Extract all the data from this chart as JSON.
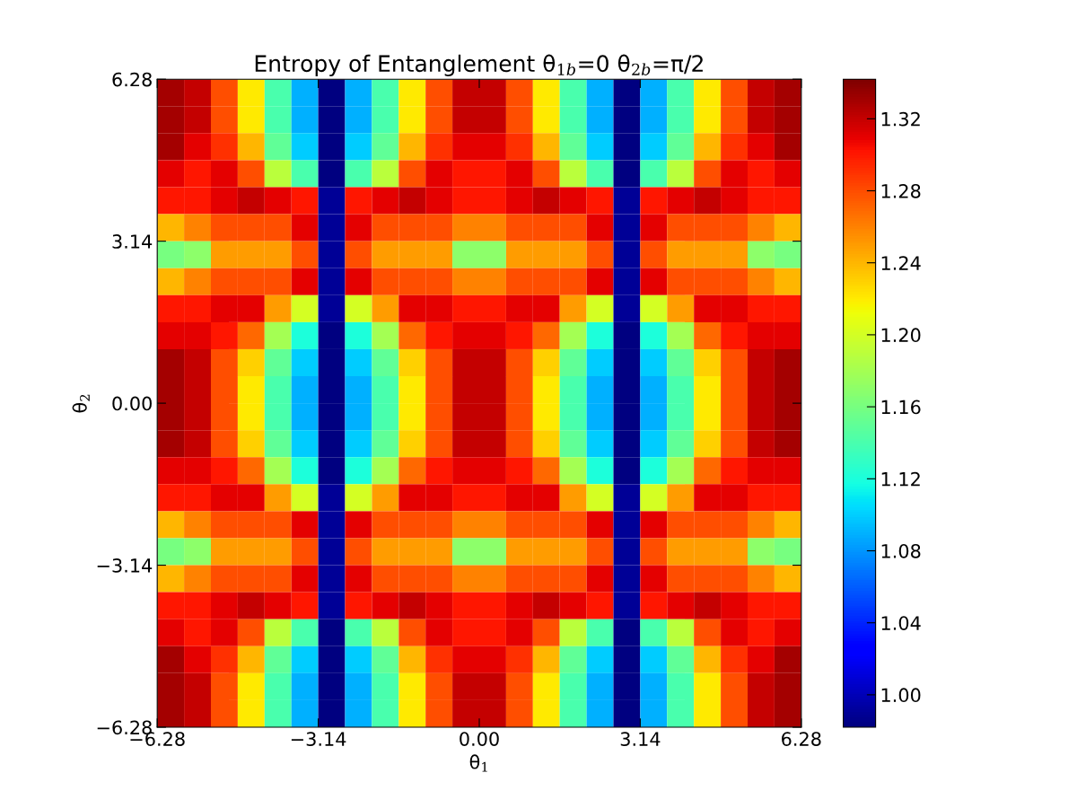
{
  "chart_data": {
    "type": "heatmap",
    "title": "Entropy of Entanglement θ$_{1b}$=0 θ$_{2b}$=π/2",
    "xlabel": "θ$_{1}$",
    "ylabel": "θ$_{2}$",
    "xlim": [
      -6.28,
      6.28
    ],
    "ylim": [
      -6.28,
      6.28
    ],
    "xticks": [
      {
        "value": -6.28,
        "label": "−6.28"
      },
      {
        "value": -3.14,
        "label": "−3.14"
      },
      {
        "value": 0,
        "label": "0.00"
      },
      {
        "value": 3.14,
        "label": "3.14"
      },
      {
        "value": 6.28,
        "label": "6.28"
      }
    ],
    "yticks": [
      {
        "value": -6.28,
        "label": "−6.28"
      },
      {
        "value": -3.14,
        "label": "−3.14"
      },
      {
        "value": 0,
        "label": "0.00"
      },
      {
        "value": 3.14,
        "label": "3.14"
      },
      {
        "value": 6.28,
        "label": "6.28"
      }
    ],
    "clim": [
      0.982,
      1.342
    ],
    "cticks": [
      {
        "value": 1.0,
        "label": "1.00"
      },
      {
        "value": 1.04,
        "label": "1.04"
      },
      {
        "value": 1.08,
        "label": "1.08"
      },
      {
        "value": 1.12,
        "label": "1.12"
      },
      {
        "value": 1.16,
        "label": "1.16"
      },
      {
        "value": 1.2,
        "label": "1.20"
      },
      {
        "value": 1.24,
        "label": "1.24"
      },
      {
        "value": 1.28,
        "label": "1.28"
      },
      {
        "value": 1.32,
        "label": "1.32"
      }
    ],
    "cells": [
      [
        1.33,
        1.32,
        1.28,
        1.22,
        1.14,
        1.09,
        0.98,
        1.09,
        1.14,
        1.22,
        1.28,
        1.32,
        1.32,
        1.28,
        1.22,
        1.14,
        1.09,
        0.98,
        1.09,
        1.14,
        1.22,
        1.28,
        1.32,
        1.33
      ],
      [
        1.33,
        1.32,
        1.28,
        1.22,
        1.14,
        1.09,
        0.98,
        1.09,
        1.14,
        1.22,
        1.28,
        1.32,
        1.32,
        1.28,
        1.22,
        1.14,
        1.09,
        0.98,
        1.09,
        1.14,
        1.22,
        1.28,
        1.32,
        1.33
      ],
      [
        1.33,
        1.31,
        1.29,
        1.24,
        1.15,
        1.1,
        0.98,
        1.1,
        1.15,
        1.24,
        1.29,
        1.31,
        1.31,
        1.29,
        1.24,
        1.15,
        1.1,
        0.98,
        1.1,
        1.15,
        1.24,
        1.29,
        1.31,
        1.33
      ],
      [
        1.31,
        1.3,
        1.31,
        1.28,
        1.19,
        1.14,
        0.98,
        1.14,
        1.19,
        1.28,
        1.31,
        1.3,
        1.3,
        1.31,
        1.28,
        1.19,
        1.14,
        0.98,
        1.14,
        1.19,
        1.28,
        1.31,
        1.3,
        1.31
      ],
      [
        1.3,
        1.3,
        1.31,
        1.32,
        1.31,
        1.3,
        0.99,
        1.3,
        1.31,
        1.32,
        1.31,
        1.3,
        1.3,
        1.31,
        1.32,
        1.31,
        1.3,
        0.99,
        1.3,
        1.31,
        1.32,
        1.31,
        1.3,
        1.3
      ],
      [
        1.24,
        1.26,
        1.28,
        1.28,
        1.28,
        1.31,
        0.99,
        1.31,
        1.28,
        1.28,
        1.28,
        1.26,
        1.26,
        1.28,
        1.28,
        1.28,
        1.31,
        0.99,
        1.31,
        1.28,
        1.28,
        1.28,
        1.26,
        1.24
      ],
      [
        1.16,
        1.17,
        1.25,
        1.25,
        1.25,
        1.28,
        0.99,
        1.28,
        1.25,
        1.25,
        1.25,
        1.17,
        1.17,
        1.25,
        1.25,
        1.25,
        1.28,
        0.99,
        1.28,
        1.25,
        1.25,
        1.25,
        1.17,
        1.16
      ],
      [
        1.24,
        1.26,
        1.28,
        1.28,
        1.28,
        1.31,
        0.99,
        1.31,
        1.28,
        1.28,
        1.28,
        1.26,
        1.26,
        1.28,
        1.28,
        1.28,
        1.31,
        0.99,
        1.31,
        1.28,
        1.28,
        1.28,
        1.26,
        1.24
      ],
      [
        1.3,
        1.3,
        1.31,
        1.31,
        1.25,
        1.2,
        0.99,
        1.2,
        1.25,
        1.31,
        1.31,
        1.3,
        1.3,
        1.31,
        1.31,
        1.25,
        1.2,
        0.99,
        1.2,
        1.25,
        1.31,
        1.31,
        1.3,
        1.3
      ],
      [
        1.31,
        1.31,
        1.3,
        1.27,
        1.18,
        1.12,
        0.98,
        1.12,
        1.18,
        1.27,
        1.3,
        1.31,
        1.31,
        1.3,
        1.27,
        1.18,
        1.12,
        0.98,
        1.12,
        1.18,
        1.27,
        1.3,
        1.31,
        1.31
      ],
      [
        1.33,
        1.32,
        1.28,
        1.23,
        1.15,
        1.1,
        0.98,
        1.1,
        1.15,
        1.23,
        1.28,
        1.32,
        1.32,
        1.28,
        1.23,
        1.15,
        1.1,
        0.98,
        1.1,
        1.15,
        1.23,
        1.28,
        1.32,
        1.33
      ],
      [
        1.33,
        1.32,
        1.28,
        1.22,
        1.14,
        1.09,
        0.98,
        1.09,
        1.14,
        1.22,
        1.28,
        1.32,
        1.32,
        1.28,
        1.22,
        1.14,
        1.09,
        0.98,
        1.09,
        1.14,
        1.22,
        1.28,
        1.32,
        1.33
      ],
      [
        1.33,
        1.32,
        1.28,
        1.22,
        1.14,
        1.09,
        0.98,
        1.09,
        1.14,
        1.22,
        1.28,
        1.32,
        1.32,
        1.28,
        1.22,
        1.14,
        1.09,
        0.98,
        1.09,
        1.14,
        1.22,
        1.28,
        1.32,
        1.33
      ],
      [
        1.33,
        1.32,
        1.28,
        1.23,
        1.15,
        1.1,
        0.98,
        1.1,
        1.15,
        1.23,
        1.28,
        1.32,
        1.32,
        1.28,
        1.23,
        1.15,
        1.1,
        0.98,
        1.1,
        1.15,
        1.23,
        1.28,
        1.32,
        1.33
      ],
      [
        1.31,
        1.31,
        1.3,
        1.27,
        1.18,
        1.12,
        0.98,
        1.12,
        1.18,
        1.27,
        1.3,
        1.31,
        1.31,
        1.3,
        1.27,
        1.18,
        1.12,
        0.98,
        1.12,
        1.18,
        1.27,
        1.3,
        1.31,
        1.31
      ],
      [
        1.3,
        1.3,
        1.31,
        1.31,
        1.25,
        1.2,
        0.99,
        1.2,
        1.25,
        1.31,
        1.31,
        1.3,
        1.3,
        1.31,
        1.31,
        1.25,
        1.2,
        0.99,
        1.2,
        1.25,
        1.31,
        1.31,
        1.3,
        1.3
      ],
      [
        1.24,
        1.26,
        1.28,
        1.28,
        1.28,
        1.31,
        0.99,
        1.31,
        1.28,
        1.28,
        1.28,
        1.26,
        1.26,
        1.28,
        1.28,
        1.28,
        1.31,
        0.99,
        1.31,
        1.28,
        1.28,
        1.28,
        1.26,
        1.24
      ],
      [
        1.16,
        1.17,
        1.25,
        1.25,
        1.25,
        1.28,
        0.99,
        1.28,
        1.25,
        1.25,
        1.25,
        1.17,
        1.17,
        1.25,
        1.25,
        1.25,
        1.28,
        0.99,
        1.28,
        1.25,
        1.25,
        1.25,
        1.17,
        1.16
      ],
      [
        1.24,
        1.26,
        1.28,
        1.28,
        1.28,
        1.31,
        0.99,
        1.31,
        1.28,
        1.28,
        1.28,
        1.26,
        1.26,
        1.28,
        1.28,
        1.28,
        1.31,
        0.99,
        1.31,
        1.28,
        1.28,
        1.28,
        1.26,
        1.24
      ],
      [
        1.3,
        1.3,
        1.31,
        1.32,
        1.31,
        1.3,
        0.99,
        1.3,
        1.31,
        1.32,
        1.31,
        1.3,
        1.3,
        1.31,
        1.32,
        1.31,
        1.3,
        0.99,
        1.3,
        1.31,
        1.32,
        1.31,
        1.3,
        1.3
      ],
      [
        1.31,
        1.3,
        1.31,
        1.28,
        1.19,
        1.14,
        0.98,
        1.14,
        1.19,
        1.28,
        1.31,
        1.3,
        1.3,
        1.31,
        1.28,
        1.19,
        1.14,
        0.98,
        1.14,
        1.19,
        1.28,
        1.31,
        1.3,
        1.31
      ],
      [
        1.33,
        1.31,
        1.29,
        1.24,
        1.15,
        1.1,
        0.98,
        1.1,
        1.15,
        1.24,
        1.29,
        1.31,
        1.31,
        1.29,
        1.24,
        1.15,
        1.1,
        0.98,
        1.1,
        1.15,
        1.24,
        1.29,
        1.31,
        1.33
      ],
      [
        1.33,
        1.32,
        1.28,
        1.22,
        1.14,
        1.09,
        0.98,
        1.09,
        1.14,
        1.22,
        1.28,
        1.32,
        1.32,
        1.28,
        1.22,
        1.14,
        1.09,
        0.98,
        1.09,
        1.14,
        1.22,
        1.28,
        1.32,
        1.33
      ],
      [
        1.33,
        1.32,
        1.28,
        1.22,
        1.14,
        1.09,
        0.98,
        1.09,
        1.14,
        1.22,
        1.28,
        1.32,
        1.32,
        1.28,
        1.22,
        1.14,
        1.09,
        0.98,
        1.09,
        1.14,
        1.22,
        1.28,
        1.32,
        1.33
      ]
    ]
  }
}
